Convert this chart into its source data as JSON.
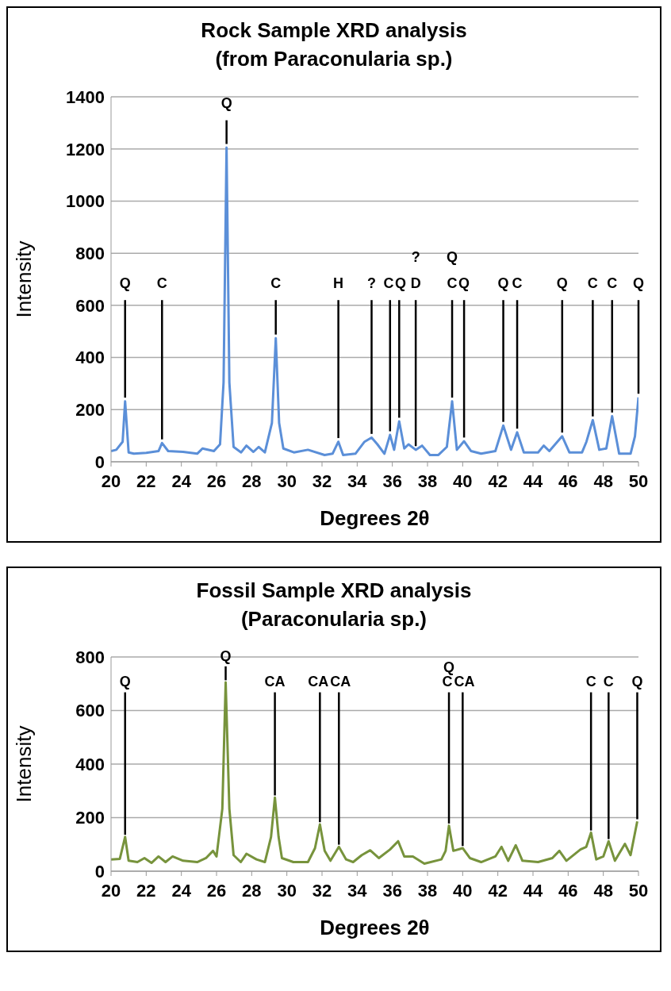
{
  "chart_data": [
    {
      "type": "line",
      "title": "Rock Sample XRD analysis",
      "subtitle": "(from Paraconularia sp.)",
      "xlabel": "Degrees 2θ",
      "ylabel": "Intensity",
      "xlim": [
        20,
        50
      ],
      "xticks": [
        20,
        22,
        24,
        26,
        28,
        30,
        32,
        34,
        36,
        38,
        40,
        42,
        44,
        46,
        48,
        50
      ],
      "ylim": [
        0,
        1400
      ],
      "yticks": [
        0,
        200,
        400,
        600,
        800,
        1000,
        1200,
        1400
      ],
      "grid": "y",
      "marker": "none",
      "x": [
        20,
        20.3,
        20.66,
        20.8,
        21.0,
        21.3,
        22.0,
        22.7,
        22.9,
        23.25,
        24.1,
        24.9,
        25.2,
        25.85,
        26.2,
        26.4,
        26.57,
        26.73,
        26.97,
        27.4,
        27.7,
        28.1,
        28.4,
        28.75,
        29.15,
        29.37,
        29.56,
        29.8,
        30.4,
        31.2,
        32.15,
        32.6,
        32.93,
        33.2,
        33.9,
        34.42,
        34.82,
        35.15,
        35.55,
        35.87,
        36.1,
        36.39,
        36.68,
        36.92,
        37.33,
        37.69,
        38.14,
        38.62,
        39.1,
        39.4,
        39.67,
        40.08,
        40.48,
        41.05,
        41.86,
        42.31,
        42.75,
        43.1,
        43.48,
        44.29,
        44.61,
        44.93,
        45.66,
        46.07,
        46.79,
        47.04,
        47.4,
        47.77,
        48.17,
        48.5,
        48.9,
        49.55,
        49.8,
        50
      ],
      "series": [
        {
          "color": "#5b8fd8",
          "values": [
            41,
            46,
            77,
            232,
            36,
            31,
            34,
            41,
            72,
            41,
            38,
            31,
            51,
            41,
            67,
            304,
            1205,
            304,
            57,
            36,
            62,
            38,
            57,
            36,
            149,
            474,
            149,
            51,
            36,
            46,
            26,
            31,
            77,
            26,
            31,
            77,
            93,
            67,
            31,
            103,
            46,
            155,
            51,
            67,
            46,
            62,
            26,
            26,
            57,
            232,
            46,
            79,
            41,
            31,
            41,
            139,
            46,
            113,
            36,
            36,
            62,
            41,
            98,
            36,
            36,
            77,
            160,
            46,
            51,
            175,
            31,
            31,
            98,
            247
          ]
        }
      ],
      "annotations": [
        {
          "text": "Q",
          "x": 20.8,
          "y": 232
        },
        {
          "text": "C",
          "x": 22.9,
          "y": 72
        },
        {
          "text": "Q",
          "x": 26.57,
          "y": 1205
        },
        {
          "text": "C",
          "x": 29.37,
          "y": 474
        },
        {
          "text": "H",
          "x": 32.93,
          "y": 77
        },
        {
          "text": "?",
          "x": 34.82,
          "y": 93
        },
        {
          "text": "C",
          "x": 35.87,
          "y": 103
        },
        {
          "text": "Q",
          "x": 36.39,
          "y": 155
        },
        {
          "text": "?\nD",
          "x": 37.33,
          "y": 46
        },
        {
          "text": "Q\nC",
          "x": 39.4,
          "y": 232
        },
        {
          "text": "Q",
          "x": 40.08,
          "y": 79
        },
        {
          "text": "Q",
          "x": 42.31,
          "y": 139
        },
        {
          "text": "C",
          "x": 43.1,
          "y": 113
        },
        {
          "text": "Q",
          "x": 45.66,
          "y": 98
        },
        {
          "text": "C",
          "x": 47.4,
          "y": 160
        },
        {
          "text": "C",
          "x": 48.5,
          "y": 175
        },
        {
          "text": "Q",
          "x": 50,
          "y": 247
        }
      ]
    },
    {
      "type": "line",
      "title": "Fossil Sample XRD analysis",
      "subtitle": "(Paraconularia sp.)",
      "xlabel": "Degrees 2θ",
      "ylabel": "Intensity",
      "xlim": [
        20,
        50
      ],
      "xticks": [
        20,
        22,
        24,
        26,
        28,
        30,
        32,
        34,
        36,
        38,
        40,
        42,
        44,
        46,
        48,
        50
      ],
      "ylim": [
        0,
        800
      ],
      "yticks": [
        0,
        200,
        400,
        600,
        800
      ],
      "grid": "y",
      "marker": "none",
      "x": [
        20,
        20.5,
        20.8,
        21.0,
        21.5,
        21.9,
        22.3,
        22.7,
        23.1,
        23.5,
        24.1,
        24.9,
        25.4,
        25.8,
        26.0,
        26.33,
        26.52,
        26.73,
        26.97,
        27.38,
        27.7,
        28.27,
        28.75,
        29.1,
        29.32,
        29.53,
        29.72,
        30.37,
        31.2,
        31.6,
        31.88,
        32.15,
        32.48,
        32.96,
        33.37,
        33.77,
        34.26,
        34.74,
        35.23,
        35.87,
        36.33,
        36.68,
        37.17,
        37.82,
        38.79,
        39.03,
        39.22,
        39.47,
        40.0,
        40.41,
        41.05,
        41.86,
        42.21,
        42.59,
        43.02,
        43.4,
        44.29,
        45.1,
        45.5,
        45.9,
        46.7,
        47.03,
        47.3,
        47.6,
        48.0,
        48.3,
        48.66,
        49.23,
        49.55,
        49.93
      ],
      "series": [
        {
          "color": "#77933c",
          "values": [
            44,
            46,
            128,
            39,
            34,
            49,
            31,
            55,
            34,
            55,
            39,
            34,
            49,
            76,
            55,
            233,
            705,
            233,
            60,
            34,
            65,
            44,
            34,
            128,
            275,
            128,
            49,
            34,
            34,
            86,
            175,
            76,
            39,
            91,
            44,
            34,
            60,
            78,
            49,
            81,
            112,
            55,
            55,
            28,
            44,
            76,
            170,
            76,
            86,
            49,
            34,
            55,
            91,
            39,
            97,
            39,
            34,
            49,
            76,
            39,
            81,
            91,
            144,
            44,
            55,
            112,
            39,
            102,
            60,
            186
          ]
        }
      ],
      "annotations": [
        {
          "text": "Q",
          "x": 20.8,
          "y": 128
        },
        {
          "text": "Q",
          "x": 26.52,
          "y": 705
        },
        {
          "text": "CA",
          "x": 29.32,
          "y": 275
        },
        {
          "text": "CA",
          "x": 31.88,
          "y": 175
        },
        {
          "text": "CA",
          "x": 32.96,
          "y": 91
        },
        {
          "text": "C",
          "x": 39.22,
          "y": 170
        },
        {
          "text": "Q",
          "x": 39.22,
          "y": 170
        },
        {
          "text": "CA",
          "x": 40.0,
          "y": 86
        },
        {
          "text": "C",
          "x": 47.3,
          "y": 144
        },
        {
          "text": "C",
          "x": 48.3,
          "y": 112
        },
        {
          "text": "Q",
          "x": 49.93,
          "y": 186
        }
      ]
    }
  ]
}
